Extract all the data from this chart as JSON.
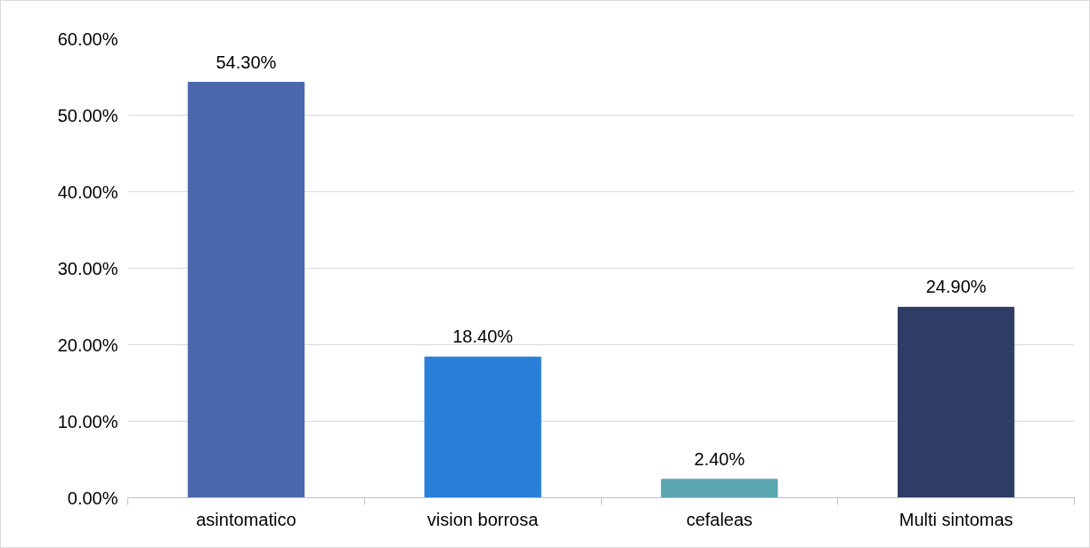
{
  "chart_data": {
    "type": "bar",
    "categories": [
      "asintomatico",
      "vision borrosa",
      "cefaleas",
      "Multi sintomas"
    ],
    "values": [
      54.3,
      18.4,
      2.4,
      24.9
    ],
    "colors": [
      "#4a67ae",
      "#2a7fd8",
      "#5aa5b0",
      "#2e3c66"
    ],
    "value_labels": [
      "54.30%",
      "18.40%",
      "2.40%",
      "24.90%"
    ],
    "ylim": [
      0,
      60
    ],
    "yticks": [
      {
        "value": 0,
        "label": "0.00%"
      },
      {
        "value": 10,
        "label": "10.00%"
      },
      {
        "value": 20,
        "label": "20.00%"
      },
      {
        "value": 30,
        "label": "30.00%"
      },
      {
        "value": 40,
        "label": "40.00%"
      },
      {
        "value": 50,
        "label": "50.00%"
      },
      {
        "value": 60,
        "label": "60.00%"
      }
    ],
    "grid": "y"
  }
}
